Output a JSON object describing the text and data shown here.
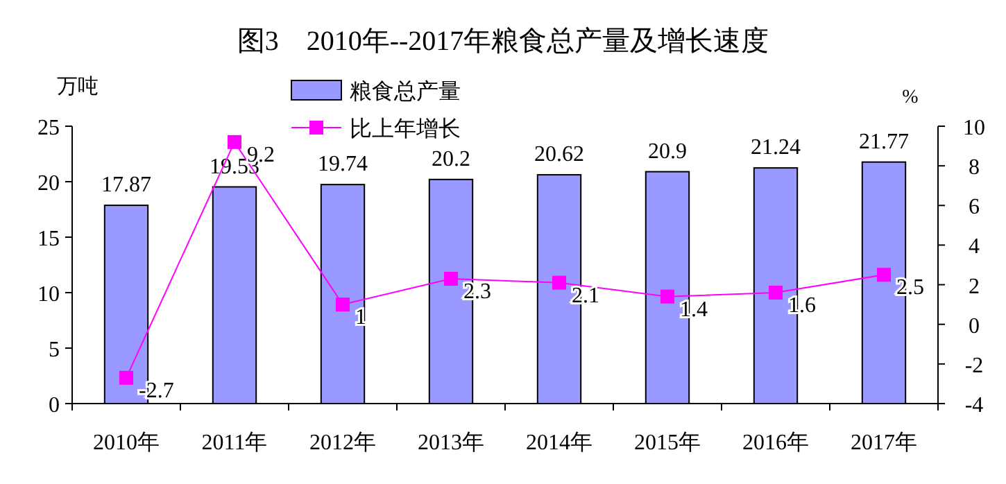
{
  "chart_data": {
    "type": "bar",
    "title": "图3　2010年--2017年粮食总产量及增长速度",
    "ylabel": "万吨",
    "y2label": "%",
    "categories": [
      "2010年",
      "2011年",
      "2012年",
      "2013年",
      "2014年",
      "2015年",
      "2016年",
      "2017年"
    ],
    "series": [
      {
        "name": "粮食总产量",
        "color": "#9999ff",
        "values": [
          17.87,
          19.53,
          19.74,
          20.2,
          20.62,
          20.9,
          21.24,
          21.77
        ]
      },
      {
        "name": "比上年增长",
        "type": "line",
        "axis": "y2",
        "color": "#ff00ff",
        "marker": "square",
        "values": [
          -2.7,
          9.2,
          1,
          2.3,
          2.1,
          1.4,
          1.6,
          2.5
        ]
      }
    ],
    "ylim": [
      0,
      25
    ],
    "yticks": [
      0,
      5,
      10,
      15,
      20,
      25
    ],
    "y2lim": [
      -4,
      10
    ],
    "y2ticks": [
      -4,
      -2,
      0,
      2,
      4,
      6,
      8,
      10
    ],
    "data_labels": true,
    "legend": "top",
    "grid": false
  }
}
